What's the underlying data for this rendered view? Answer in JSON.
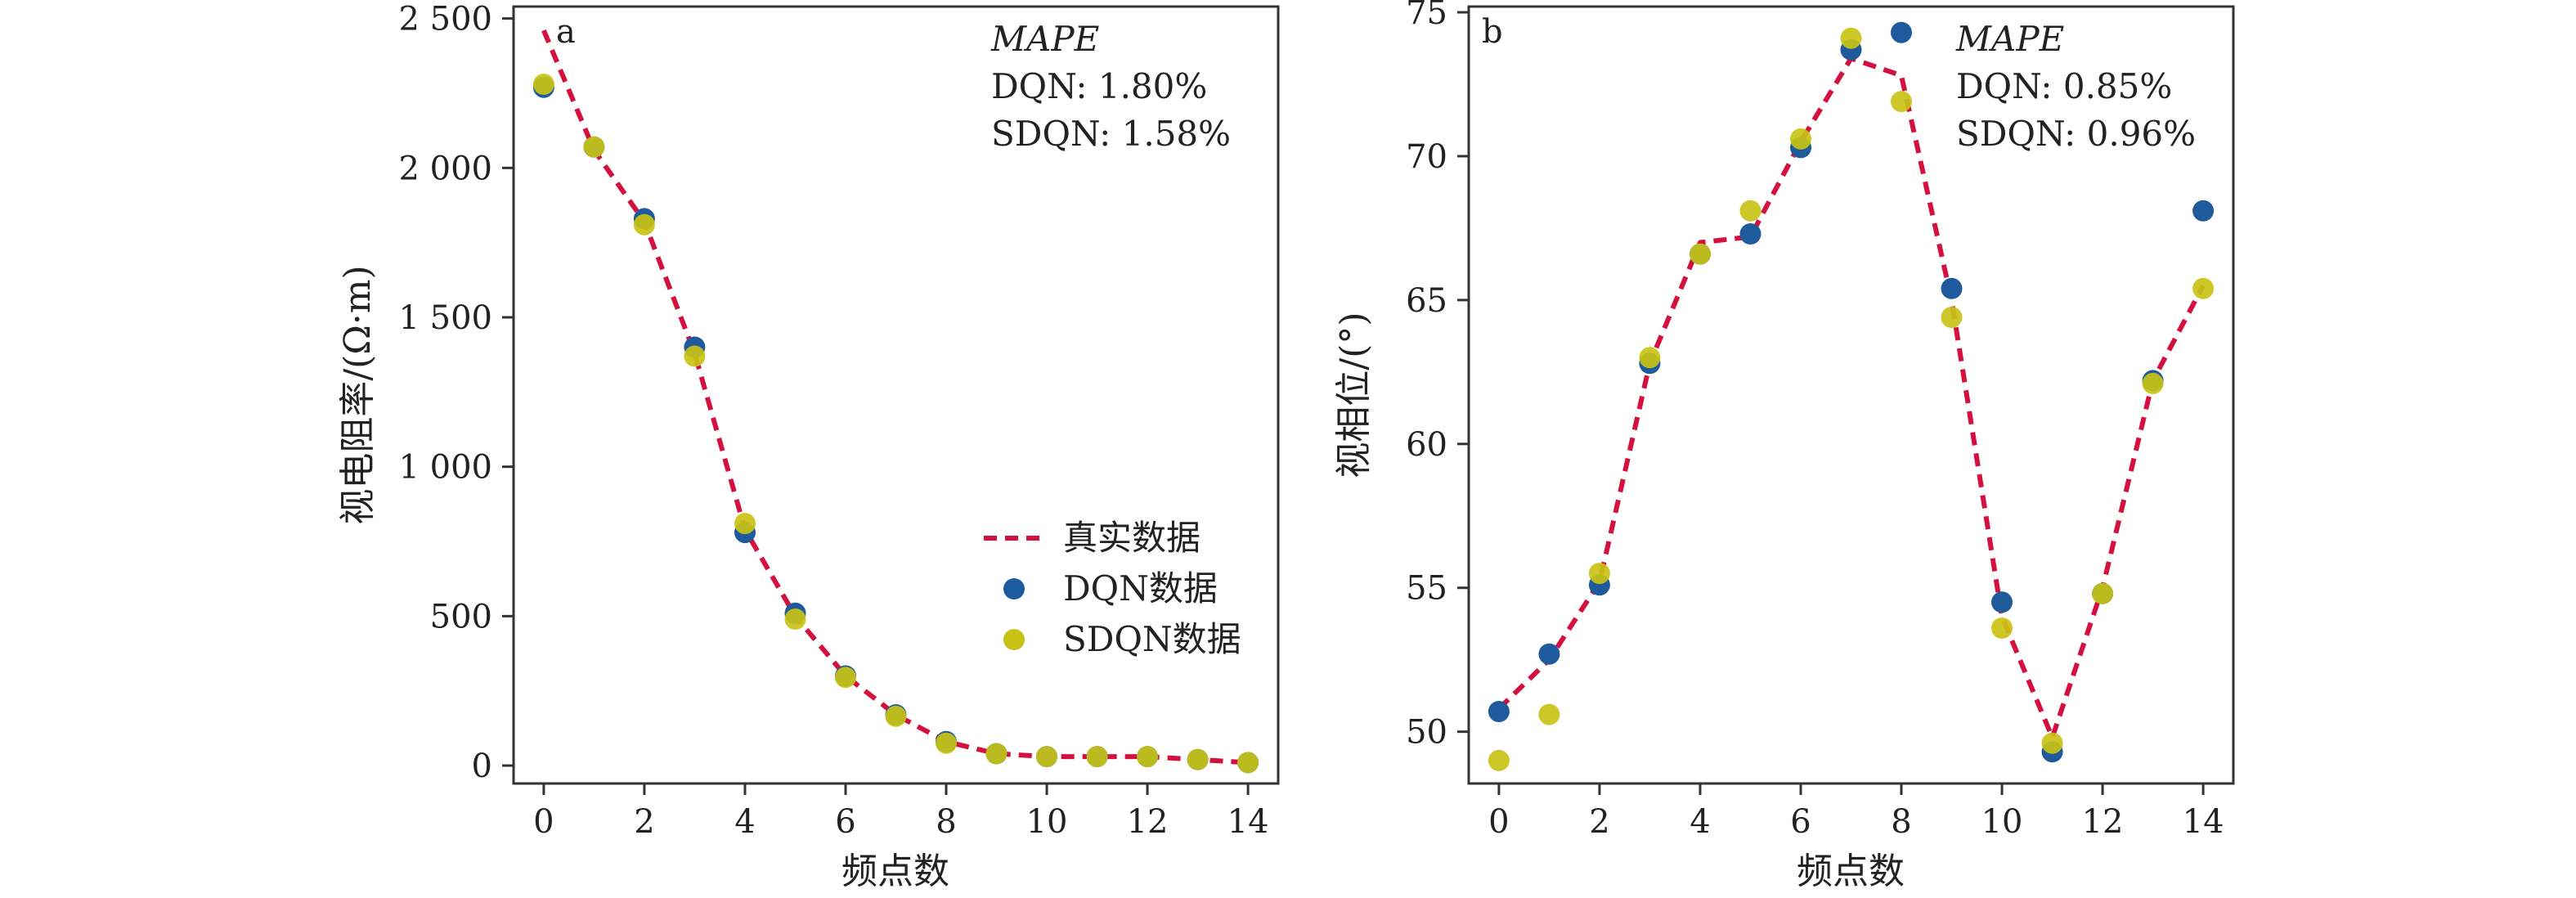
{
  "colors": {
    "true_line": "#d4103f",
    "dqn": "#1f5a9c",
    "sdqn": "#c9c215",
    "axis": "#333333"
  },
  "legend": {
    "true_label": "真实数据",
    "dqn_label": "DQN数据",
    "sdqn_label": "SDQN数据"
  },
  "chart_data": [
    {
      "panel": "a",
      "type": "line+scatter",
      "xlabel": "频点数",
      "ylabel": "视电阻率/(Ω·m)",
      "xlim": [
        -0.6,
        14.6
      ],
      "ylim": [
        -60,
        2540
      ],
      "xticks": [
        0,
        2,
        4,
        6,
        8,
        10,
        12,
        14
      ],
      "yticks": [
        0,
        500,
        1000,
        1500,
        2000,
        2500
      ],
      "ytick_labels": [
        "0",
        "500",
        "1 000",
        "1 500",
        "2 000",
        "2 500"
      ],
      "annotation": {
        "title": "MAPE",
        "lines": [
          "DQN: 1.80%",
          "SDQN: 1.58%"
        ]
      },
      "legend_position": "center-right",
      "x": [
        0,
        1,
        2,
        3,
        4,
        5,
        6,
        7,
        8,
        9,
        10,
        11,
        12,
        13,
        14
      ],
      "series": [
        {
          "name": "真实数据",
          "style": "dashed-line",
          "values": [
            2460,
            2060,
            1820,
            1380,
            790,
            500,
            300,
            170,
            80,
            40,
            30,
            30,
            30,
            20,
            10
          ]
        },
        {
          "name": "DQN数据",
          "style": "scatter",
          "values": [
            2270,
            2070,
            1830,
            1400,
            780,
            510,
            300,
            170,
            80,
            40,
            30,
            30,
            30,
            20,
            10
          ]
        },
        {
          "name": "SDQN数据",
          "style": "scatter",
          "values": [
            2280,
            2070,
            1810,
            1370,
            810,
            490,
            295,
            165,
            75,
            40,
            30,
            30,
            30,
            20,
            10
          ]
        }
      ]
    },
    {
      "panel": "b",
      "type": "line+scatter",
      "xlabel": "频点数",
      "ylabel": "视相位/(°)",
      "xlim": [
        -0.6,
        14.6
      ],
      "ylim": [
        48.2,
        75.2
      ],
      "xticks": [
        0,
        2,
        4,
        6,
        8,
        10,
        12,
        14
      ],
      "yticks": [
        50,
        55,
        60,
        65,
        70,
        75
      ],
      "ytick_labels": [
        "50",
        "55",
        "60",
        "65",
        "70",
        "75"
      ],
      "annotation": {
        "title": "MAPE",
        "lines": [
          "DQN: 0.85%",
          "SDQN: 0.96%"
        ]
      },
      "x": [
        0,
        1,
        2,
        3,
        4,
        5,
        6,
        7,
        8,
        9,
        10,
        11,
        12,
        13,
        14
      ],
      "series": [
        {
          "name": "真实数据",
          "style": "dashed-line",
          "values": [
            50.8,
            52.5,
            55.2,
            62.8,
            67.0,
            67.2,
            70.5,
            73.4,
            72.8,
            65.0,
            54.0,
            49.8,
            55.0,
            62.2,
            65.5
          ]
        },
        {
          "name": "DQN数据",
          "style": "scatter",
          "values": [
            50.7,
            52.7,
            55.1,
            62.8,
            66.6,
            67.3,
            70.3,
            73.7,
            74.3,
            65.4,
            54.5,
            49.3,
            54.8,
            62.2,
            68.1
          ]
        },
        {
          "name": "SDQN数据",
          "style": "scatter",
          "values": [
            49.0,
            50.6,
            55.5,
            63.0,
            66.6,
            68.1,
            70.6,
            74.1,
            71.9,
            64.4,
            53.6,
            49.6,
            54.8,
            62.1,
            65.4
          ]
        }
      ]
    }
  ]
}
